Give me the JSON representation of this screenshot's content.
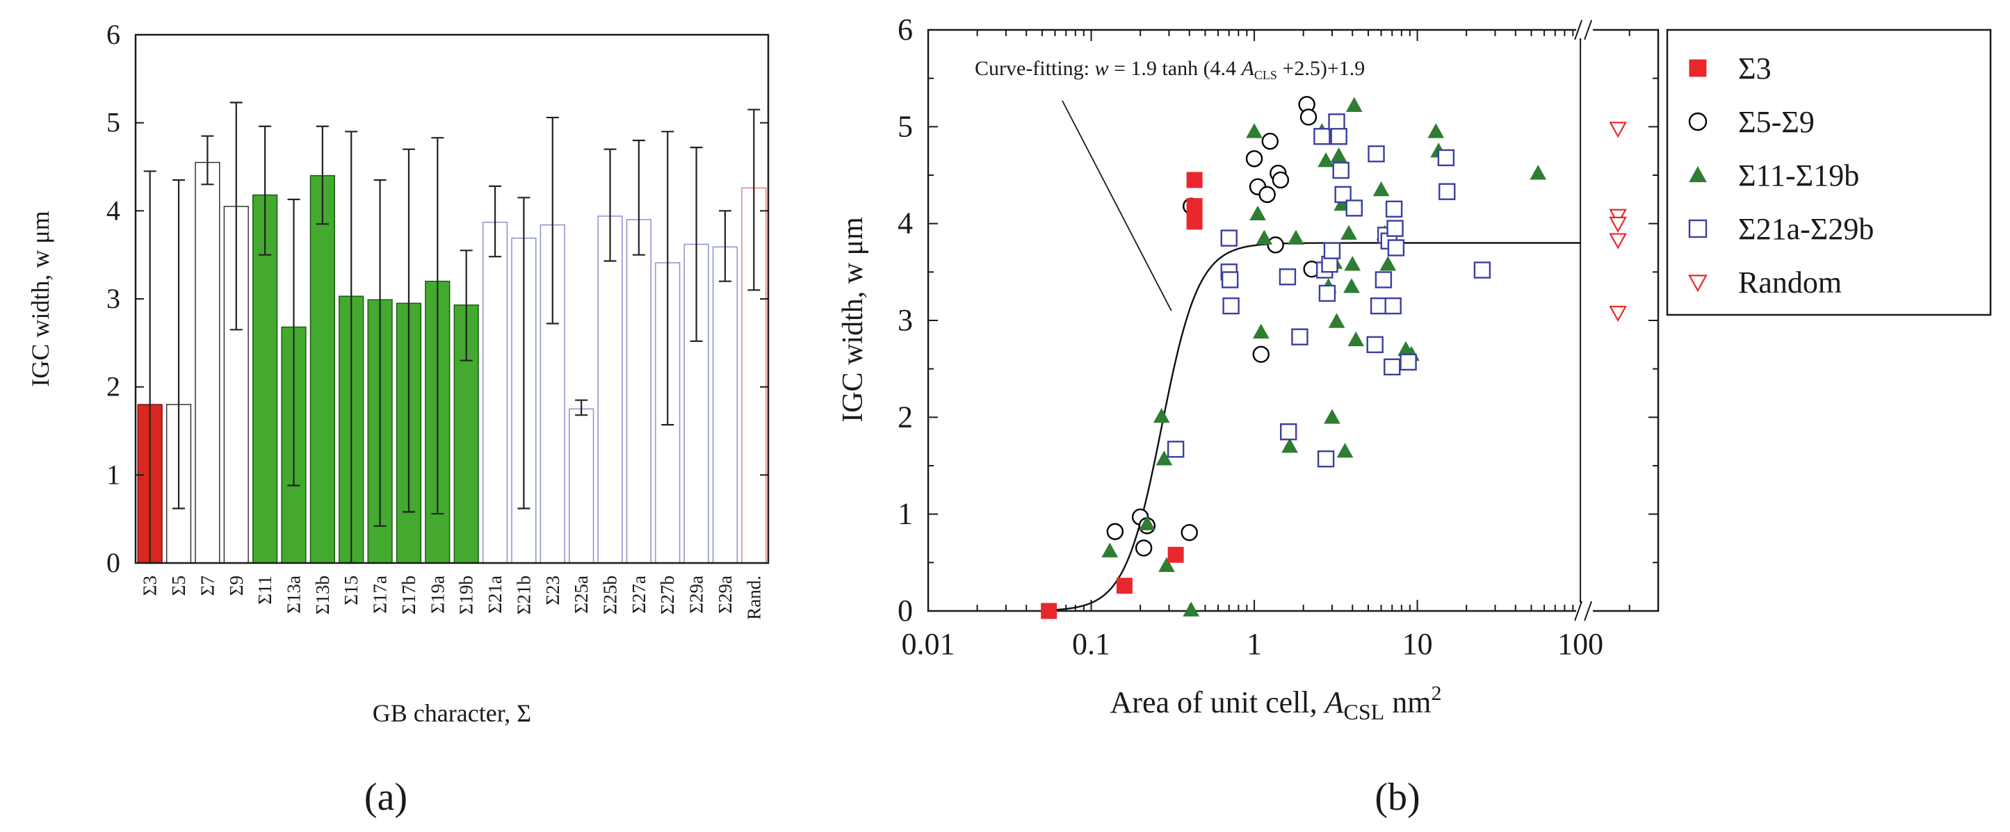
{
  "chart_data": [
    {
      "type": "bar",
      "panel_label": "(a)",
      "xlabel": "GB character, Σ",
      "ylabel": "IGC width, w μm",
      "ylim": [
        0,
        6
      ],
      "yticks": [
        "0",
        "1",
        "2",
        "3",
        "4",
        "5",
        "6"
      ],
      "categories": [
        "Σ3",
        "Σ5",
        "Σ7",
        "Σ9",
        "Σ11",
        "Σ13a",
        "Σ13b",
        "Σ15",
        "Σ17a",
        "Σ17b",
        "Σ19a",
        "Σ19b",
        "Σ21a",
        "Σ21b",
        "Σ23",
        "Σ25a",
        "Σ25b",
        "Σ27a",
        "Σ27b",
        "Σ29a",
        "Σ29a",
        "Rand."
      ],
      "values": [
        1.8,
        1.8,
        4.55,
        4.05,
        4.18,
        2.68,
        4.4,
        3.03,
        2.99,
        2.95,
        3.2,
        2.93,
        3.87,
        3.69,
        3.84,
        1.75,
        3.94,
        3.9,
        3.41,
        3.62,
        3.59,
        4.26
      ],
      "err_low": [
        0,
        0.62,
        4.3,
        2.65,
        3.5,
        0.88,
        3.85,
        0,
        0.42,
        0.58,
        0.56,
        2.3,
        3.48,
        0.62,
        2.72,
        1.68,
        3.43,
        3.5,
        1.57,
        2.52,
        3.2,
        3.1
      ],
      "err_high": [
        4.45,
        4.35,
        4.85,
        5.23,
        4.96,
        4.13,
        4.96,
        4.9,
        4.35,
        4.7,
        4.83,
        3.55,
        4.28,
        4.15,
        5.06,
        1.85,
        4.7,
        4.8,
        4.9,
        4.72,
        4.0,
        5.15
      ],
      "groups": [
        "Σ3",
        "Σ5-Σ9",
        "Σ5-Σ9",
        "Σ5-Σ9",
        "Σ11-Σ19b",
        "Σ11-Σ19b",
        "Σ11-Σ19b",
        "Σ11-Σ19b",
        "Σ11-Σ19b",
        "Σ11-Σ19b",
        "Σ11-Σ19b",
        "Σ11-Σ19b",
        "Σ21a-Σ29b",
        "Σ21a-Σ29b",
        "Σ21a-Σ29b",
        "Σ21a-Σ29b",
        "Σ21a-Σ29b",
        "Σ21a-Σ29b",
        "Σ21a-Σ29b",
        "Σ21a-Σ29b",
        "Σ21a-Σ29b",
        "Random"
      ]
    },
    {
      "type": "scatter",
      "panel_label": "(b)",
      "xscale": "log",
      "xlim": [
        0.01,
        300
      ],
      "ylim": [
        0,
        6
      ],
      "xticks": [
        "0.01",
        "0.1",
        "1",
        "10",
        "100"
      ],
      "yticks": [
        "0",
        "1",
        "2",
        "3",
        "4",
        "5",
        "6"
      ],
      "xlabel_text": "Area of unit cell, ",
      "xlabel_var": "A",
      "xlabel_sub": "CSL",
      "xlabel_unit": " nm",
      "xlabel_sup": "2",
      "ylabel": "IGC width, w μm",
      "axis_break_at": 100,
      "annotation": {
        "prefix": "Curve-fitting:  ",
        "var": "w",
        "mid": " = 1.9 tanh (4.4 ",
        "a": "A",
        "sub": "CLS",
        "suffix": " +2.5)+1.9",
        "arrow_to": [
          0.31,
          3.1
        ]
      },
      "fit_curve": {
        "formula": "w = 1.9 tanh(4.4 A + 2.5) + 1.9",
        "a": 1.9,
        "b": 4.4,
        "c": 2.5,
        "d": 1.9,
        "x_range": [
          0.05,
          100
        ]
      },
      "legend_position": "outside-right",
      "series": [
        {
          "name": "Σ3",
          "marker": "filled-square",
          "color": "#e8282c",
          "x": [
            0.055,
            0.16,
            0.33,
            0.43,
            0.43,
            0.43
          ],
          "y": [
            0.0,
            0.26,
            0.58,
            4.45,
            4.18,
            4.02
          ]
        },
        {
          "name": "Σ5-Σ9",
          "marker": "open-circle",
          "color": "#000000",
          "x": [
            0.14,
            0.2,
            0.21,
            0.22,
            0.4,
            0.41,
            1.0,
            1.05,
            1.1,
            1.2,
            1.25,
            1.35,
            1.4,
            1.45,
            2.1,
            2.15,
            2.25
          ],
          "y": [
            0.82,
            0.97,
            0.65,
            0.88,
            0.81,
            4.18,
            4.67,
            4.38,
            2.65,
            4.3,
            4.85,
            3.78,
            4.52,
            4.45,
            5.23,
            5.1,
            3.53
          ]
        },
        {
          "name": "Σ11-Σ19b",
          "marker": "filled-triangle",
          "color": "#2e7d32",
          "x": [
            0.13,
            0.22,
            0.27,
            0.28,
            0.29,
            0.41,
            1.0,
            1.05,
            1.1,
            1.15,
            1.65,
            1.8,
            2.6,
            2.75,
            2.85,
            3.0,
            3.1,
            3.2,
            3.3,
            3.45,
            3.6,
            3.8,
            3.95,
            4.0,
            4.1,
            4.2,
            6.0,
            6.3,
            6.6,
            8.5,
            9.2,
            13.0,
            13.5,
            55.0
          ],
          "y": [
            0.62,
            0.9,
            2.01,
            1.57,
            0.47,
            0.01,
            4.95,
            4.1,
            2.88,
            3.85,
            1.7,
            3.85,
            4.95,
            4.65,
            3.35,
            2.0,
            3.6,
            2.99,
            4.7,
            4.2,
            1.65,
            3.9,
            3.35,
            3.58,
            5.22,
            2.8,
            4.35,
            3.9,
            3.58,
            2.7,
            2.65,
            4.95,
            4.75,
            4.52
          ]
        },
        {
          "name": "Σ21a-Σ29b",
          "marker": "open-square",
          "color": "#3a3f9e",
          "x": [
            0.33,
            0.7,
            0.7,
            0.71,
            0.72,
            1.6,
            1.62,
            1.9,
            2.6,
            2.7,
            2.75,
            2.8,
            2.9,
            3.0,
            3.2,
            3.3,
            3.4,
            3.5,
            4.1,
            5.5,
            5.6,
            5.8,
            6.2,
            6.4,
            6.7,
            7.0,
            7.1,
            7.2,
            7.3,
            7.4,
            8.8,
            15.0,
            15.2,
            25.0
          ],
          "y": [
            1.67,
            3.85,
            3.5,
            3.42,
            3.15,
            3.45,
            1.85,
            2.83,
            4.9,
            3.52,
            1.57,
            3.28,
            3.58,
            3.72,
            5.05,
            4.9,
            4.55,
            4.3,
            4.16,
            2.75,
            4.72,
            3.15,
            3.42,
            3.88,
            3.82,
            2.52,
            3.15,
            4.15,
            3.95,
            3.75,
            2.57,
            4.68,
            4.33,
            3.52
          ]
        },
        {
          "name": "Random",
          "marker": "open-triangle-down",
          "color": "#e8282c",
          "x": [
            170,
            170,
            170,
            170,
            170
          ],
          "y": [
            4.98,
            4.08,
            4.0,
            3.83,
            3.08
          ]
        }
      ]
    }
  ]
}
